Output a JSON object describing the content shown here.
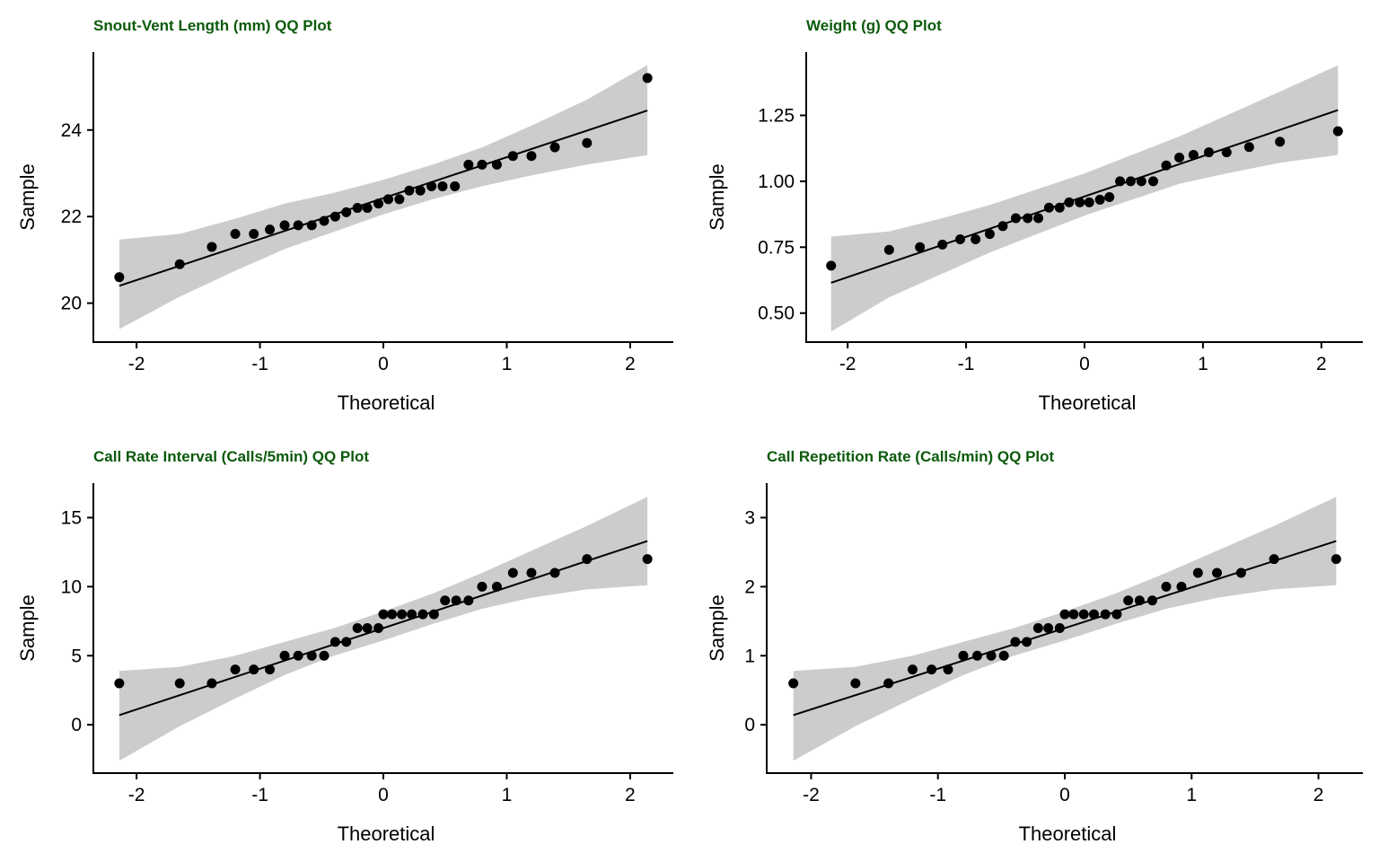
{
  "colors": {
    "title": "#0b5a0b",
    "band": "#cccccc",
    "points": "#000000",
    "line": "#000000",
    "axis": "#000000"
  },
  "chart_data": [
    {
      "type": "scatter",
      "title": "Snout-Vent Length (mm) QQ Plot",
      "xlabel": "Theoretical",
      "ylabel": "Sample",
      "xlim": [
        -2.35,
        2.35
      ],
      "ylim": [
        19.1,
        25.8
      ],
      "xticks": [
        -2,
        -1,
        0,
        1,
        2
      ],
      "xtick_labels": [
        "-2",
        "-1",
        "0",
        "1",
        "2"
      ],
      "yticks": [
        20,
        22,
        24
      ],
      "ytick_labels": [
        "20",
        "22",
        "24"
      ],
      "grid": false,
      "legend": "none",
      "theoretical": [
        -2.14,
        -1.65,
        -1.39,
        -1.2,
        -1.05,
        -0.92,
        -0.8,
        -0.69,
        -0.58,
        -0.48,
        -0.39,
        -0.3,
        -0.21,
        -0.13,
        -0.04,
        0.04,
        0.13,
        0.21,
        0.3,
        0.39,
        0.48,
        0.58,
        0.69,
        0.8,
        0.92,
        1.05,
        1.2,
        1.39,
        1.65,
        2.14
      ],
      "sample": [
        20.6,
        20.9,
        21.3,
        21.6,
        21.6,
        21.7,
        21.8,
        21.8,
        21.8,
        21.9,
        22.0,
        22.1,
        22.2,
        22.2,
        22.3,
        22.4,
        22.4,
        22.6,
        22.6,
        22.7,
        22.7,
        22.7,
        23.2,
        23.2,
        23.2,
        23.4,
        23.4,
        23.6,
        23.7,
        25.2
      ],
      "reference_line": {
        "x": [
          -2.14,
          2.14
        ],
        "y": [
          20.4,
          24.45
        ]
      },
      "confidence_band": {
        "x": [
          -2.14,
          -1.65,
          -1.2,
          -0.8,
          -0.4,
          0.0,
          0.4,
          0.8,
          1.2,
          1.65,
          2.14
        ],
        "lower": [
          19.4,
          20.15,
          20.75,
          21.25,
          21.65,
          22.05,
          22.4,
          22.7,
          22.95,
          23.2,
          23.42
        ],
        "upper": [
          21.47,
          21.6,
          21.95,
          22.3,
          22.55,
          22.85,
          23.2,
          23.6,
          24.1,
          24.7,
          25.5
        ]
      }
    },
    {
      "type": "scatter",
      "title": "Weight (g) QQ Plot",
      "xlabel": "Theoretical",
      "ylabel": "Sample",
      "xlim": [
        -2.35,
        2.35
      ],
      "ylim": [
        0.39,
        1.49
      ],
      "xticks": [
        -2,
        -1,
        0,
        1,
        2
      ],
      "xtick_labels": [
        "-2",
        "-1",
        "0",
        "1",
        "2"
      ],
      "yticks": [
        0.5,
        0.75,
        1.0,
        1.25
      ],
      "ytick_labels": [
        "0.50",
        "0.75",
        "1.00",
        "1.25"
      ],
      "grid": false,
      "legend": "none",
      "theoretical": [
        -2.14,
        -1.65,
        -1.39,
        -1.2,
        -1.05,
        -0.92,
        -0.8,
        -0.69,
        -0.58,
        -0.48,
        -0.39,
        -0.3,
        -0.21,
        -0.13,
        -0.04,
        0.04,
        0.13,
        0.21,
        0.3,
        0.39,
        0.48,
        0.58,
        0.69,
        0.8,
        0.92,
        1.05,
        1.2,
        1.39,
        1.65,
        2.14
      ],
      "sample": [
        0.68,
        0.74,
        0.75,
        0.76,
        0.78,
        0.78,
        0.8,
        0.83,
        0.86,
        0.86,
        0.86,
        0.9,
        0.9,
        0.92,
        0.92,
        0.92,
        0.93,
        0.94,
        1.0,
        1.0,
        1.0,
        1.0,
        1.06,
        1.09,
        1.1,
        1.11,
        1.11,
        1.13,
        1.15,
        1.19
      ],
      "reference_line": {
        "x": [
          -2.14,
          2.14
        ],
        "y": [
          0.615,
          1.27
        ]
      },
      "confidence_band": {
        "x": [
          -2.14,
          -1.65,
          -1.2,
          -0.8,
          -0.4,
          0.0,
          0.4,
          0.8,
          1.2,
          1.65,
          2.14
        ],
        "lower": [
          0.43,
          0.56,
          0.65,
          0.73,
          0.8,
          0.87,
          0.93,
          0.99,
          1.03,
          1.07,
          1.1
        ],
        "upper": [
          0.79,
          0.81,
          0.86,
          0.91,
          0.97,
          1.03,
          1.1,
          1.17,
          1.25,
          1.34,
          1.44
        ]
      }
    },
    {
      "type": "scatter",
      "title": "Call Rate Interval (Calls/5min) QQ Plot",
      "xlabel": "Theoretical",
      "ylabel": "Sample",
      "xlim": [
        -2.35,
        2.35
      ],
      "ylim": [
        -3.5,
        17.5
      ],
      "xticks": [
        -2,
        -1,
        0,
        1,
        2
      ],
      "xtick_labels": [
        "-2",
        "-1",
        "0",
        "1",
        "2"
      ],
      "yticks": [
        0,
        5,
        10,
        15
      ],
      "ytick_labels": [
        "0",
        "5",
        "10",
        "15"
      ],
      "grid": false,
      "legend": "none",
      "theoretical": [
        -2.14,
        -1.65,
        -1.39,
        -1.2,
        -1.05,
        -0.92,
        -0.8,
        -0.69,
        -0.58,
        -0.48,
        -0.39,
        -0.3,
        -0.21,
        -0.13,
        -0.04,
        0.0,
        0.07,
        0.15,
        0.23,
        0.32,
        0.41,
        0.5,
        0.59,
        0.69,
        0.8,
        0.92,
        1.05,
        1.2,
        1.39,
        1.65,
        2.14
      ],
      "sample": [
        3,
        3,
        3,
        4,
        4,
        4,
        5,
        5,
        5,
        5,
        6,
        6,
        7,
        7,
        7,
        8,
        8,
        8,
        8,
        8,
        8,
        9,
        9,
        9,
        10,
        10,
        11,
        11,
        11,
        12,
        12
      ],
      "reference_line": {
        "x": [
          -2.14,
          2.14
        ],
        "y": [
          0.7,
          13.3
        ]
      },
      "confidence_band": {
        "x": [
          -2.14,
          -1.65,
          -1.2,
          -0.8,
          -0.4,
          0.0,
          0.4,
          0.8,
          1.2,
          1.65,
          2.14
        ],
        "lower": [
          -2.6,
          -0.1,
          1.9,
          3.6,
          5.0,
          6.1,
          7.3,
          8.4,
          9.2,
          9.8,
          10.1
        ],
        "upper": [
          3.9,
          4.2,
          5.0,
          6.0,
          7.0,
          8.2,
          9.5,
          11.0,
          12.6,
          14.4,
          16.5
        ]
      }
    },
    {
      "type": "scatter",
      "title": "Call Repetition Rate (Calls/min) QQ Plot",
      "xlabel": "Theoretical",
      "ylabel": "Sample",
      "xlim": [
        -2.35,
        2.35
      ],
      "ylim": [
        -0.7,
        3.5
      ],
      "xticks": [
        -2,
        -1,
        0,
        1,
        2
      ],
      "xtick_labels": [
        "-2",
        "-1",
        "0",
        "1",
        "2"
      ],
      "yticks": [
        0,
        1,
        2,
        3
      ],
      "ytick_labels": [
        "0",
        "1",
        "2",
        "3"
      ],
      "grid": false,
      "legend": "none",
      "theoretical": [
        -2.14,
        -1.65,
        -1.39,
        -1.2,
        -1.05,
        -0.92,
        -0.8,
        -0.69,
        -0.58,
        -0.48,
        -0.39,
        -0.3,
        -0.21,
        -0.13,
        -0.04,
        0.0,
        0.07,
        0.15,
        0.23,
        0.32,
        0.41,
        0.5,
        0.59,
        0.69,
        0.8,
        0.92,
        1.05,
        1.2,
        1.39,
        1.65,
        2.14
      ],
      "sample": [
        0.6,
        0.6,
        0.6,
        0.8,
        0.8,
        0.8,
        1.0,
        1.0,
        1.0,
        1.0,
        1.2,
        1.2,
        1.4,
        1.4,
        1.4,
        1.6,
        1.6,
        1.6,
        1.6,
        1.6,
        1.6,
        1.8,
        1.8,
        1.8,
        2.0,
        2.0,
        2.2,
        2.2,
        2.2,
        2.4,
        2.4
      ],
      "reference_line": {
        "x": [
          -2.14,
          2.14
        ],
        "y": [
          0.14,
          2.66
        ]
      },
      "confidence_band": {
        "x": [
          -2.14,
          -1.65,
          -1.2,
          -0.8,
          -0.4,
          0.0,
          0.4,
          0.8,
          1.2,
          1.65,
          2.14
        ],
        "lower": [
          -0.52,
          -0.02,
          0.38,
          0.72,
          1.0,
          1.22,
          1.46,
          1.68,
          1.84,
          1.96,
          2.02
        ],
        "upper": [
          0.78,
          0.84,
          1.0,
          1.2,
          1.4,
          1.64,
          1.9,
          2.2,
          2.52,
          2.88,
          3.3
        ]
      }
    }
  ]
}
